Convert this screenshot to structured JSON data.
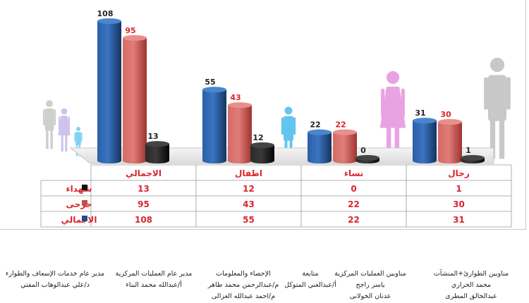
{
  "chart_data": {
    "type": "bar",
    "categories": [
      "رجال",
      "نساء",
      "اطفال",
      "الاجمالي"
    ],
    "series": [
      {
        "name": "الاجمالي",
        "values": [
          31,
          22,
          55,
          108
        ],
        "color": "#1f4e8c",
        "label_color": "#222222"
      },
      {
        "name": "جرحى",
        "values": [
          30,
          22,
          43,
          95
        ],
        "color": "#c0504d",
        "label_color": "#d9262c"
      },
      {
        "name": "شهداء",
        "values": [
          1,
          0,
          12,
          13
        ],
        "color": "#111111",
        "label_color": "#222222"
      }
    ],
    "table_header_color": "#d9262c",
    "legend": "left-of-table",
    "ylim": [
      0,
      108
    ],
    "icons": [
      "man-silhouette",
      "woman-silhouette",
      "child-silhouette",
      "family-silhouette"
    ]
  },
  "credits": [
    {
      "lines": [
        "مناوبين الطوارئ+المنشآت",
        "محمد الحرازي",
        "عبدالخالق المطرى"
      ]
    },
    {
      "lines": [
        "مناوبين العمليات المركزية",
        "ياسر راجح",
        "عدنان الخولانى"
      ]
    },
    {
      "lines": [
        "متابعة",
        "أ/عبدالغني المتوكل"
      ]
    },
    {
      "lines": [
        "الإحصاء والمعلومات",
        "م/عبدالرحمن محمد طاهر",
        "م/احمد عبدالله الغزالى"
      ]
    },
    {
      "lines": [
        "مدير عام العمليات المركزية",
        "أ/عبدالله محمد البناء"
      ]
    },
    {
      "lines": [
        "مدير عام خدمات الإسعاف والطوارء",
        "د/علي عبدالوهاب المفتي"
      ]
    }
  ]
}
